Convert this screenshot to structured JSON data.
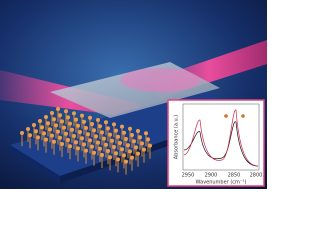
{
  "inset": {
    "y_label": "Absorbance (a.u.)",
    "x_label": "Wavenumber (cm⁻¹)",
    "x_ticks": [
      "2950",
      "2900",
      "2850",
      "2800"
    ]
  }
}
